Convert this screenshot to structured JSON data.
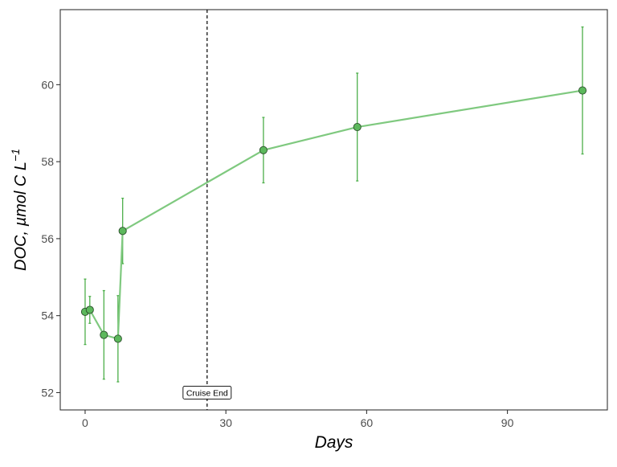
{
  "chart_data": {
    "type": "line",
    "title": "",
    "xlabel": "Days",
    "ylabel_main": "DOC, µmol C L",
    "ylabel_sup": "−1",
    "xlim": [
      -5.3,
      111.3
    ],
    "ylim": [
      51.55,
      61.95
    ],
    "xticks": [
      0,
      30,
      60,
      90
    ],
    "yticks": [
      52,
      54,
      56,
      58,
      60
    ],
    "grid": false,
    "colors": {
      "line": "#7fc97f",
      "marker_fill": "#5cb85c",
      "marker_edge": "#2b4f2b",
      "errorbar": "#4daf4a",
      "frame": "#333333",
      "axis_text": "#4d4d4d",
      "vline": "#000000"
    },
    "series": [
      {
        "x": [
          0,
          1,
          4,
          7,
          8,
          38,
          58,
          106
        ],
        "y": [
          54.1,
          54.15,
          53.5,
          53.4,
          56.2,
          58.3,
          58.9,
          59.85
        ],
        "err_low": [
          53.25,
          53.8,
          52.35,
          52.28,
          55.35,
          57.45,
          57.5,
          58.2
        ],
        "err_high": [
          54.95,
          54.5,
          54.65,
          54.52,
          57.05,
          59.15,
          60.3,
          61.5
        ]
      }
    ],
    "vline": {
      "x": 26,
      "style": "dashed"
    },
    "annotation": {
      "text": "Cruise End",
      "x": 26,
      "y": 52
    }
  }
}
